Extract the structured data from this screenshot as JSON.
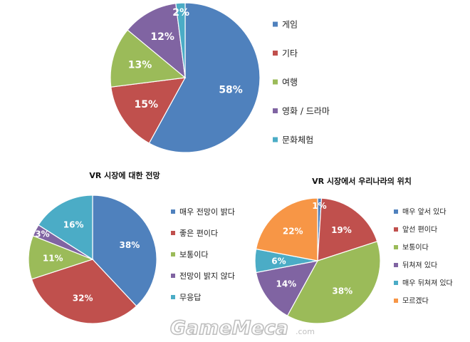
{
  "chart_data": [
    {
      "type": "pie",
      "title": "",
      "categories": [
        "게임",
        "기타",
        "여행",
        "영화 / 드라마",
        "문화체험"
      ],
      "values": [
        58,
        15,
        13,
        12,
        2
      ],
      "value_labels": [
        "58%",
        "15%",
        "13%",
        "12%",
        "2%"
      ],
      "colors": [
        "#4f81bd",
        "#c0504d",
        "#9bbb59",
        "#8064a2",
        "#4bacc6"
      ],
      "legend": "right"
    },
    {
      "type": "pie",
      "title": "VR 시장에 대한 전망",
      "categories": [
        "매우 전망이 밝다",
        "좋은 편이다",
        "보통이다",
        "전망이 밝지 않다",
        "무응답"
      ],
      "values": [
        38,
        32,
        11,
        3,
        16
      ],
      "value_labels": [
        "38%",
        "32%",
        "11%",
        "3%",
        "16%"
      ],
      "colors": [
        "#4f81bd",
        "#c0504d",
        "#9bbb59",
        "#8064a2",
        "#4bacc6"
      ],
      "legend": "right"
    },
    {
      "type": "pie",
      "title": "VR 시장에서 우리나라의 위치",
      "categories": [
        "매우 앞서 있다",
        "앞선 편이다",
        "보통이다",
        "뒤쳐져 있다",
        "매우 뒤쳐져 있다",
        "모르겠다"
      ],
      "values": [
        1,
        19,
        38,
        14,
        6,
        22
      ],
      "value_labels": [
        "1%",
        "19%",
        "38%",
        "14%",
        "6%",
        "22%"
      ],
      "colors": [
        "#4f81bd",
        "#c0504d",
        "#9bbb59",
        "#8064a2",
        "#4bacc6",
        "#f79646"
      ],
      "legend": "right"
    }
  ],
  "watermark": {
    "text": "GameMeca",
    "suffix": ".com"
  }
}
